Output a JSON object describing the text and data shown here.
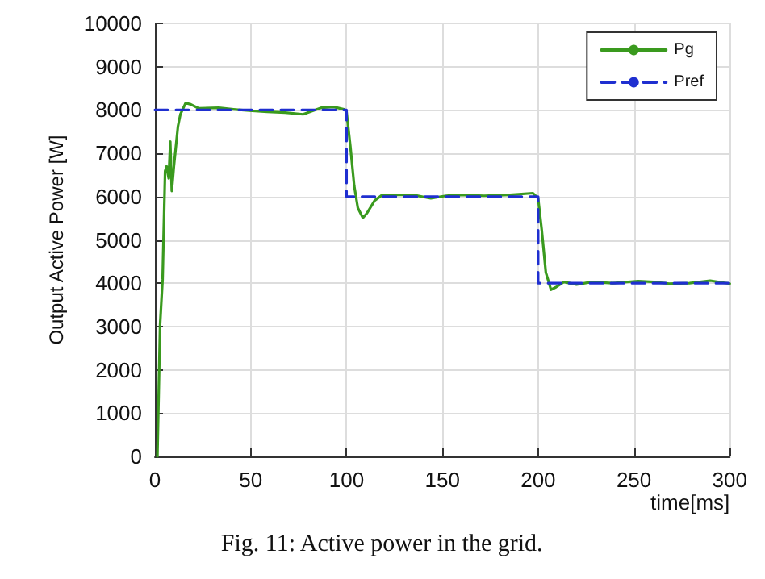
{
  "chart_data": {
    "type": "line",
    "xlabel": "time[ms]",
    "ylabel": "Output Active Power [W]",
    "xlim": [
      0,
      300
    ],
    "xticks": [
      0,
      50,
      100,
      150,
      200,
      250,
      300
    ],
    "ylim": [
      0,
      10000
    ],
    "yticks": [
      0,
      1000,
      2000,
      3000,
      4000,
      5000,
      6000,
      7000,
      8000,
      9000,
      10000
    ],
    "grid": true,
    "legend": "top right",
    "marker": "none",
    "annotations": [
      "Fig. 11: Active power in the grid."
    ],
    "series": [
      {
        "name": "Pg",
        "color": "#3a9a1e",
        "line_style": "solid",
        "x": [
          1.3,
          2.7,
          4,
          5.3,
          6.1,
          7.2,
          8,
          8.8,
          9.9,
          12,
          13.3,
          16,
          18.7,
          22.7,
          33.3,
          41,
          50.7,
          58.7,
          68,
          77.3,
          86.7,
          93.3,
          98.7,
          100,
          102,
          104,
          105.9,
          108.5,
          110.7,
          114.7,
          118.7,
          126.7,
          134.7,
          144,
          152,
          158.4,
          171.8,
          185.3,
          197.3,
          200,
          201.9,
          204,
          206.7,
          209.4,
          213.4,
          220,
          228,
          238.9,
          252.3,
          260.3,
          268.4,
          279,
          289.8,
          300
        ],
        "values": [
          0,
          3050,
          4080,
          6590,
          6700,
          6420,
          7270,
          6130,
          6700,
          7620,
          7900,
          8160,
          8130,
          8040,
          8050,
          8015,
          7980,
          7960,
          7940,
          7900,
          8050,
          8070,
          8015,
          7960,
          7160,
          6250,
          5740,
          5510,
          5620,
          5910,
          6040,
          6040,
          6040,
          5960,
          6020,
          6040,
          6020,
          6040,
          6080,
          5960,
          5220,
          4250,
          3850,
          3910,
          4030,
          3970,
          4030,
          4000,
          4050,
          4030,
          3990,
          4000,
          4060,
          3990
        ]
      },
      {
        "name": "Pref",
        "color": "#1f2fd0",
        "line_style": "dashed",
        "x": [
          0,
          100,
          100,
          200,
          200,
          300
        ],
        "values": [
          8000,
          8000,
          6000,
          6000,
          4000,
          4000
        ]
      }
    ]
  }
}
